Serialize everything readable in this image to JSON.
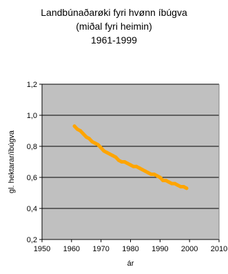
{
  "chart_data": {
    "type": "line",
    "title_lines": [
      "Landbúnaðarøki fyri hvønn íbúgva",
      "(miðal fyri heimin)",
      "1961-1999"
    ],
    "xlabel": "ár",
    "ylabel": "gl. hektarar/íbúgva",
    "xlim": [
      1950,
      2010
    ],
    "ylim": [
      0.2,
      1.2
    ],
    "xticks": [
      1950,
      1960,
      1970,
      1980,
      1990,
      2000,
      2010
    ],
    "yticks": [
      0.2,
      0.4,
      0.6,
      0.8,
      1.0,
      1.2
    ],
    "ytick_labels": [
      "0,2",
      "0,4",
      "0,6",
      "0,8",
      "1,0",
      "1,2"
    ],
    "grid": "horizontal",
    "plot_background": "#c0c0c0",
    "series": [
      {
        "color": "#ffa500",
        "x": [
          1961,
          1962,
          1963,
          1964,
          1965,
          1966,
          1967,
          1968,
          1969,
          1970,
          1971,
          1972,
          1973,
          1974,
          1975,
          1976,
          1977,
          1978,
          1979,
          1980,
          1981,
          1982,
          1983,
          1984,
          1985,
          1986,
          1987,
          1988,
          1989,
          1990,
          1991,
          1992,
          1993,
          1994,
          1995,
          1996,
          1997,
          1998,
          1999
        ],
        "y": [
          0.93,
          0.91,
          0.9,
          0.88,
          0.86,
          0.85,
          0.83,
          0.82,
          0.81,
          0.79,
          0.77,
          0.76,
          0.75,
          0.74,
          0.73,
          0.71,
          0.7,
          0.7,
          0.69,
          0.68,
          0.67,
          0.67,
          0.66,
          0.65,
          0.64,
          0.63,
          0.62,
          0.62,
          0.61,
          0.6,
          0.58,
          0.58,
          0.57,
          0.56,
          0.56,
          0.55,
          0.54,
          0.54,
          0.53
        ]
      }
    ]
  }
}
